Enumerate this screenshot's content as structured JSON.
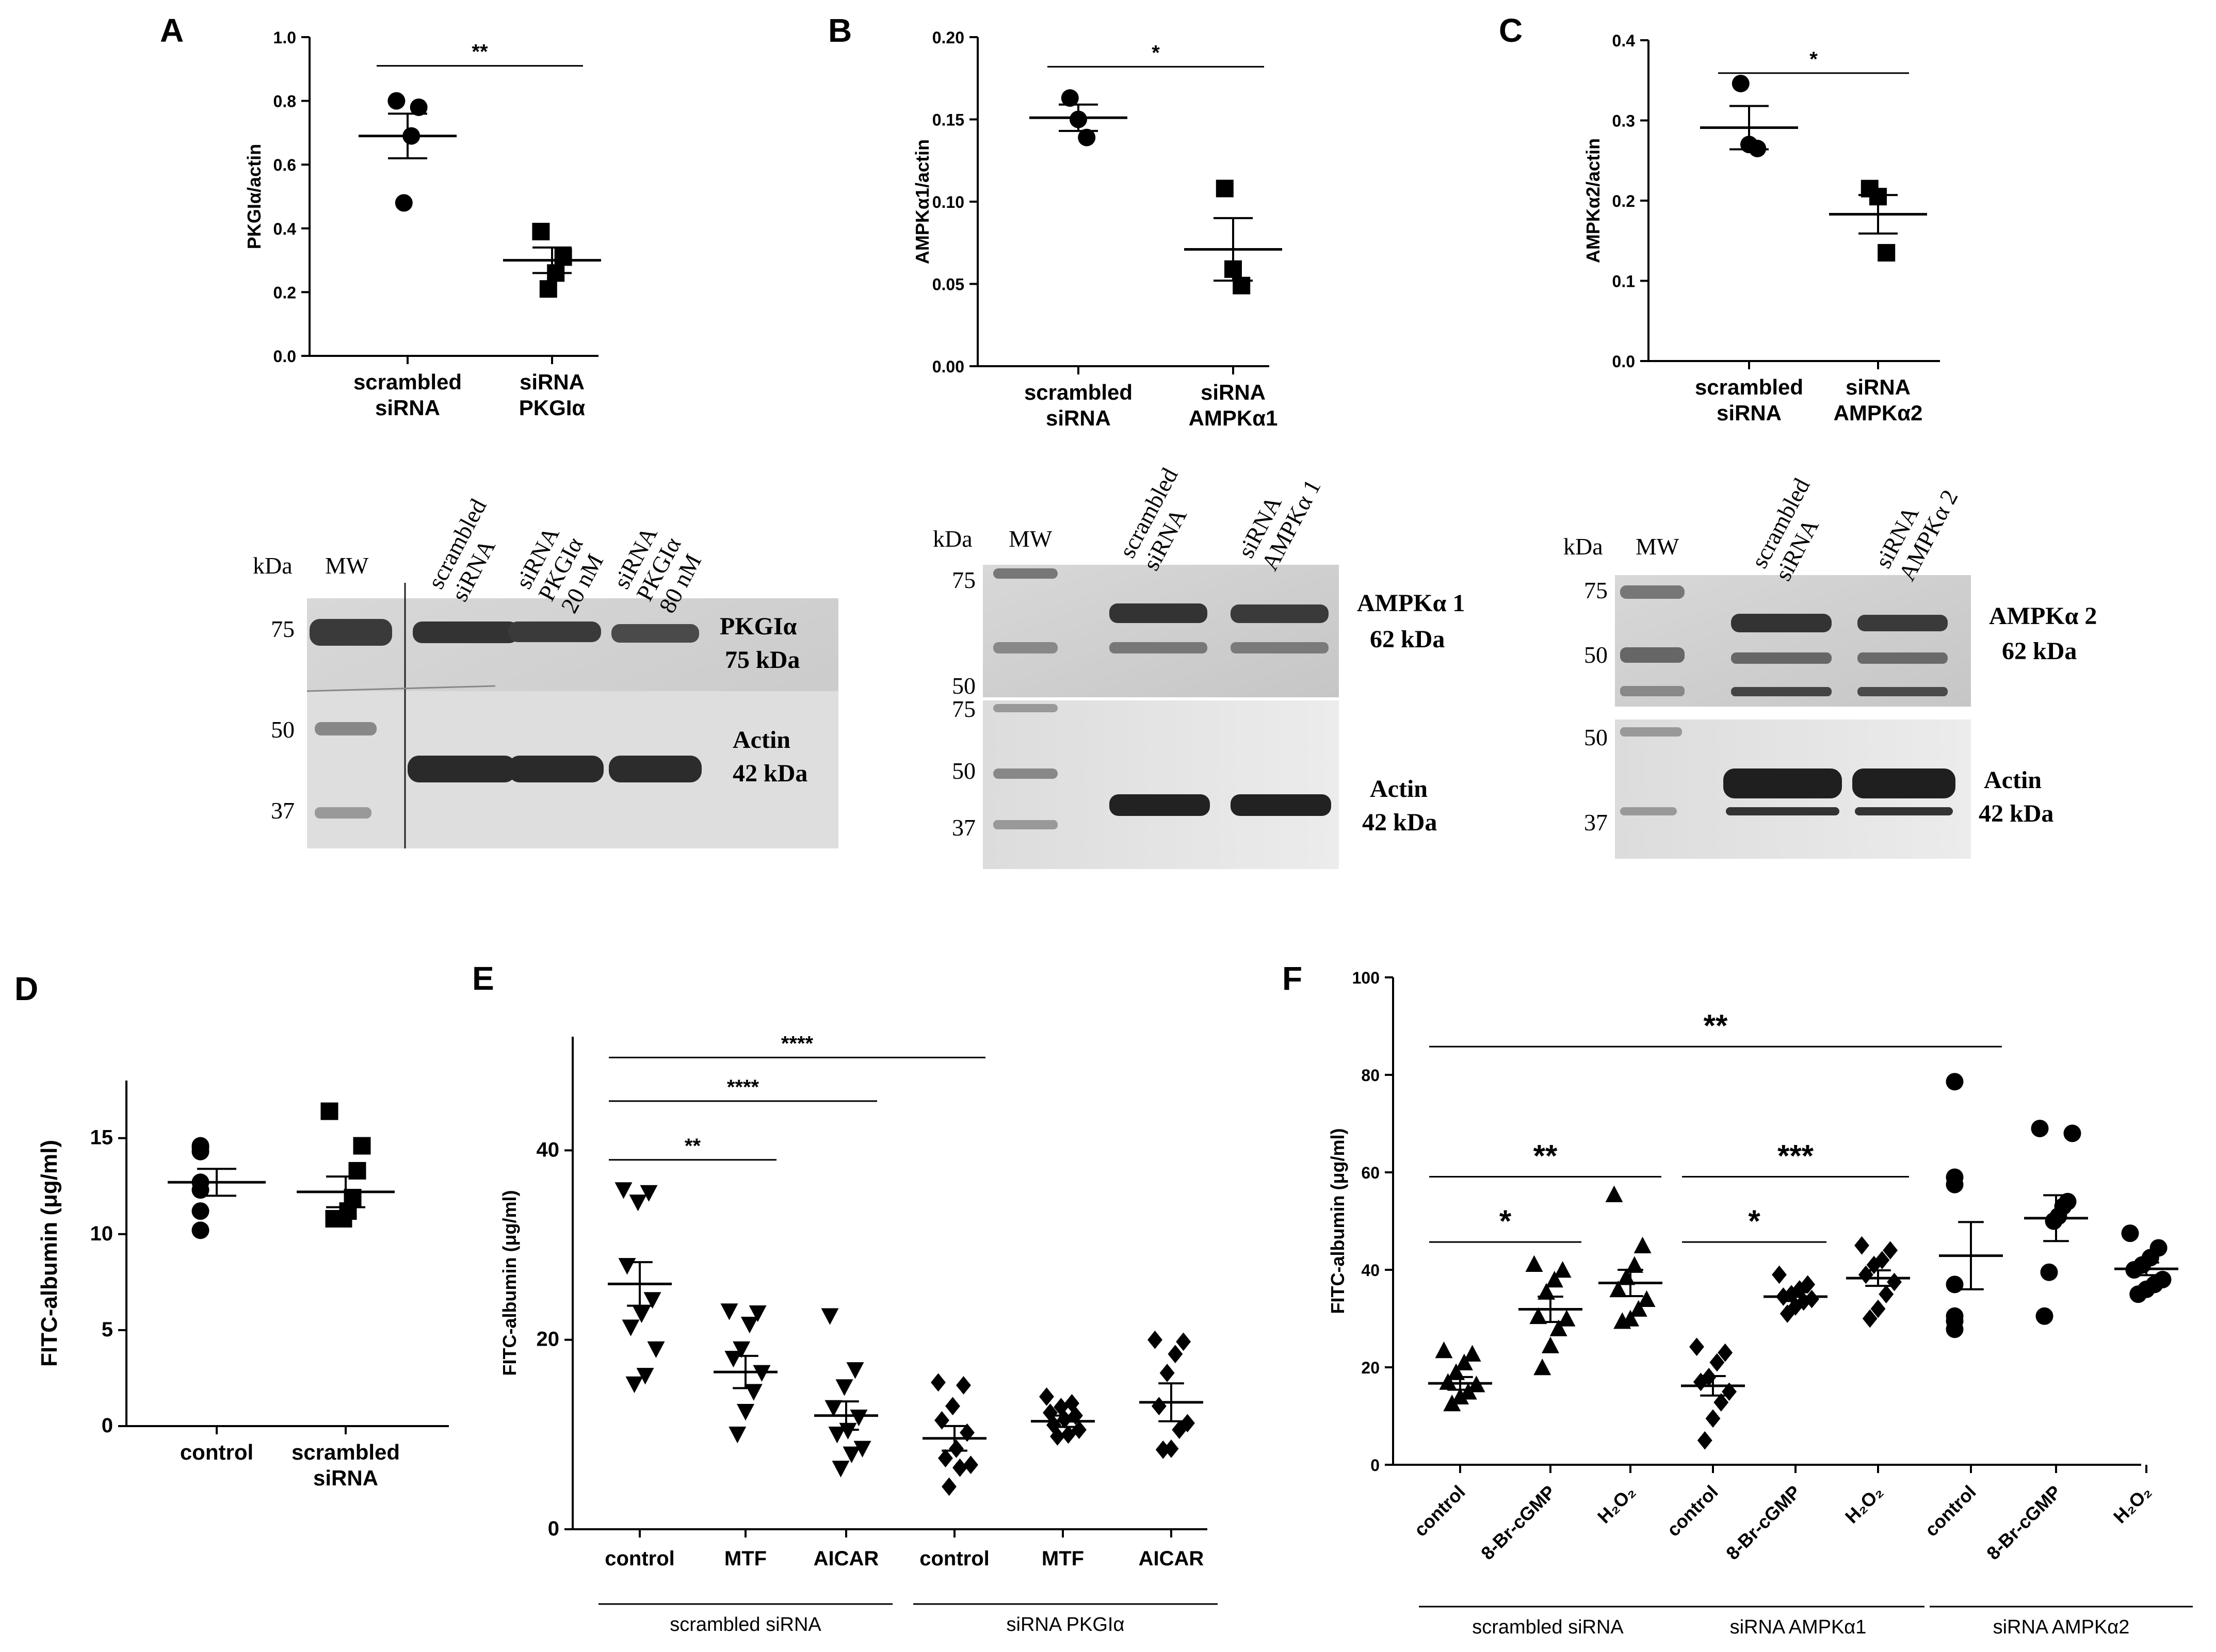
{
  "figure": {
    "panels": {
      "A": {
        "letter": "A"
      },
      "B": {
        "letter": "B"
      },
      "C": {
        "letter": "C"
      },
      "D": {
        "letter": "D"
      },
      "E": {
        "letter": "E"
      },
      "F": {
        "letter": "F"
      }
    }
  },
  "chart_data": [
    {
      "panel": "A",
      "type": "scatter",
      "ylabel": "PKGIα/actin",
      "ylim": [
        0,
        1.0
      ],
      "yticks": [
        0.0,
        0.2,
        0.4,
        0.6,
        0.8,
        1.0
      ],
      "ytick_labels": [
        "0.0",
        "0.2",
        "0.4",
        "0.6",
        "0.8",
        "1.0"
      ],
      "groups": [
        {
          "label": [
            "scrambled",
            "siRNA"
          ],
          "marker": "circle",
          "points": [
            0.8,
            0.78,
            0.69,
            0.48
          ],
          "mean": 0.69,
          "sem": 0.07
        },
        {
          "label": [
            "siRNA",
            "PKGIα"
          ],
          "marker": "square",
          "points": [
            0.39,
            0.31,
            0.26,
            0.21
          ],
          "mean": 0.3,
          "sem": 0.04
        }
      ],
      "comparisons": [
        {
          "from": 0,
          "to": 1,
          "label": "**",
          "y": 0.91
        }
      ]
    },
    {
      "panel": "B",
      "type": "scatter",
      "ylabel": "AMPKα1/actin",
      "ylim": [
        0,
        0.2
      ],
      "yticks": [
        0.0,
        0.05,
        0.1,
        0.15,
        0.2
      ],
      "ytick_labels": [
        "0.00",
        "0.05",
        "0.10",
        "0.15",
        "0.20"
      ],
      "groups": [
        {
          "label": [
            "scrambled",
            "siRNA"
          ],
          "marker": "circle",
          "points": [
            0.163,
            0.15,
            0.139
          ],
          "mean": 0.151,
          "sem": 0.008
        },
        {
          "label": [
            "siRNA",
            "AMPKα1"
          ],
          "marker": "square",
          "points": [
            0.108,
            0.059,
            0.049
          ],
          "mean": 0.071,
          "sem": 0.019
        }
      ],
      "comparisons": [
        {
          "from": 0,
          "to": 1,
          "label": "*",
          "y": 0.182
        }
      ]
    },
    {
      "panel": "C",
      "type": "scatter",
      "ylabel": "AMPKα2/actin",
      "ylim": [
        0,
        0.4
      ],
      "yticks": [
        0.0,
        0.1,
        0.2,
        0.3,
        0.4
      ],
      "ytick_labels": [
        "0.0",
        "0.1",
        "0.2",
        "0.3",
        "0.4"
      ],
      "groups": [
        {
          "label": [
            "scrambled",
            "siRNA"
          ],
          "marker": "circle",
          "points": [
            0.346,
            0.27,
            0.265
          ],
          "mean": 0.291,
          "sem": 0.027
        },
        {
          "label": [
            "siRNA",
            "AMPKα2"
          ],
          "marker": "square",
          "points": [
            0.215,
            0.205,
            0.135
          ],
          "mean": 0.183,
          "sem": 0.024
        }
      ],
      "comparisons": [
        {
          "from": 0,
          "to": 1,
          "label": "*",
          "y": 0.359
        }
      ]
    },
    {
      "panel": "D",
      "type": "scatter",
      "ylabel": "FITC-albumin (μg/ml)",
      "ylim": [
        0,
        18
      ],
      "yticks": [
        0,
        5,
        10,
        15
      ],
      "ytick_labels": [
        "0",
        "5",
        "10",
        "15"
      ],
      "groups": [
        {
          "label": [
            "control"
          ],
          "marker": "circle",
          "points": [
            14.6,
            14.5,
            14.3,
            12.7,
            12.3,
            11.2,
            10.2
          ],
          "mean": 12.7,
          "sem": 0.7
        },
        {
          "label": [
            "scrambled",
            "siRNA"
          ],
          "marker": "square",
          "points": [
            16.4,
            14.6,
            13.3,
            11.9,
            11.2,
            10.8,
            10.8,
            10.8
          ],
          "mean": 12.2,
          "sem": 0.8
        }
      ],
      "comparisons": []
    },
    {
      "panel": "E",
      "type": "scatter",
      "ylabel": "FITC-albumin (μg/ml)",
      "ylim": [
        0,
        52
      ],
      "yticks": [
        0,
        20,
        40
      ],
      "ytick_labels": [
        "0",
        "20",
        "40"
      ],
      "groups": [
        {
          "label": [
            "control"
          ],
          "marker": "triangle-down",
          "points": [
            35.8,
            35.5,
            34.5,
            27.8,
            24.2,
            22.7,
            21.3,
            19,
            16.2,
            15.3
          ],
          "mean": 25.9,
          "sem": 2.3
        },
        {
          "label": [
            "MTF"
          ],
          "marker": "triangle-down",
          "points": [
            23,
            22.8,
            21.6,
            19,
            18,
            16.5,
            14.5,
            12.4,
            10
          ],
          "mean": 16.6,
          "sem": 1.7
        },
        {
          "label": [
            "AICAR"
          ],
          "marker": "triangle-down",
          "points": [
            22.5,
            16.8,
            15,
            12.8,
            11.8,
            10.4,
            10,
            8.5,
            7.9,
            6.4
          ],
          "mean": 12.0,
          "sem": 1.5
        },
        {
          "label": [
            "control"
          ],
          "marker": "diamond",
          "points": [
            15.5,
            15.2,
            13,
            11.5,
            10.2,
            8.5,
            7.5,
            6.8,
            6.5,
            4.5
          ],
          "mean": 9.6,
          "sem": 1.3
        },
        {
          "label": [
            "MTF"
          ],
          "marker": "diamond",
          "points": [
            14,
            13.3,
            12.9,
            12.3,
            12,
            11.6,
            11,
            10.5,
            10,
            9.8
          ],
          "mean": 11.4,
          "sem": 0.6
        },
        {
          "label": [
            "AICAR"
          ],
          "marker": "diamond",
          "points": [
            20,
            19.8,
            18.5,
            16.5,
            13,
            11.2,
            10.5,
            8.5,
            8.4
          ],
          "mean": 13.4,
          "sem": 2.0
        }
      ],
      "comparisons": [
        {
          "from": 0,
          "to": 1,
          "label": "**",
          "y": 39
        },
        {
          "from": 0,
          "to": 2,
          "label": "****",
          "y": 45.2
        },
        {
          "from": 0,
          "to": 3,
          "label": "****",
          "y": 49.8
        }
      ],
      "group_labels": [
        {
          "label": "scrambled siRNA",
          "from": 0,
          "to": 2
        },
        {
          "label": "siRNA PKGIα",
          "from": 3,
          "to": 5
        }
      ]
    },
    {
      "panel": "F",
      "type": "scatter",
      "ylabel": "FITC-albumin (μg/ml)",
      "ylim": [
        0,
        100
      ],
      "yticks": [
        0,
        20,
        40,
        60,
        80,
        100
      ],
      "ytick_labels": [
        "0",
        "20",
        "40",
        "60",
        "80",
        "100"
      ],
      "groups": [
        {
          "label": [
            "control"
          ],
          "marker": "triangle-up",
          "points": [
            23.5,
            22.8,
            21,
            19,
            17,
            16.5,
            15,
            14,
            12.6
          ],
          "mean": 16.7,
          "sem": 1.3
        },
        {
          "label": [
            "8-Br-cGMP"
          ],
          "marker": "triangle-up",
          "points": [
            41.2,
            40,
            38,
            35.5,
            30.5,
            30,
            28,
            24.5,
            20
          ],
          "mean": 31.9,
          "sem": 2.6
        },
        {
          "label": [
            "H₂O₂"
          ],
          "marker": "triangle-up",
          "points": [
            55.5,
            45,
            41,
            38.5,
            36,
            34,
            32,
            30,
            29.5
          ],
          "mean": 37.3,
          "sem": 2.7
        },
        {
          "label": [
            "control"
          ],
          "marker": "diamond",
          "points": [
            24.2,
            23,
            21,
            18,
            17,
            15,
            12.8,
            9.5,
            5
          ],
          "mean": 16.2,
          "sem": 2.0
        },
        {
          "label": [
            "8-Br-cGMP"
          ],
          "marker": "diamond",
          "points": [
            39,
            37,
            36,
            35,
            34.5,
            34,
            33.5,
            32.5,
            31
          ],
          "mean": 34.5,
          "sem": 0.9
        },
        {
          "label": [
            "H₂O₂"
          ],
          "marker": "diamond",
          "points": [
            45,
            44,
            42,
            41,
            39,
            37.5,
            35,
            32,
            30
          ],
          "mean": 38.3,
          "sem": 1.6
        },
        {
          "label": [
            "control"
          ],
          "marker": "circle",
          "points": [
            78.6,
            59,
            57.5,
            37,
            30.5,
            29.5,
            27.8
          ],
          "mean": 42.9,
          "sem": 6.9
        },
        {
          "label": [
            "8-Br-cGMP"
          ],
          "marker": "circle",
          "points": [
            69,
            68,
            54,
            53,
            51,
            50,
            39.5,
            30.5
          ],
          "mean": 50.6,
          "sem": 4.7
        },
        {
          "label": [
            "H₂O₂"
          ],
          "marker": "circle",
          "points": [
            47.5,
            44.5,
            42.5,
            41,
            40,
            38,
            37,
            36,
            35
          ],
          "mean": 40.2,
          "sem": 1.3
        }
      ],
      "comparisons": [
        {
          "from": 0,
          "to": 1,
          "label": "*",
          "y": 45.7
        },
        {
          "from": 0,
          "to": 2,
          "label": "**",
          "y": 59.1
        },
        {
          "from": 3,
          "to": 4,
          "label": "*",
          "y": 45.7
        },
        {
          "from": 3,
          "to": 5,
          "label": "***",
          "y": 59.1
        },
        {
          "from": 0,
          "to": 6,
          "label": "**",
          "y": 85.8
        }
      ],
      "group_labels": [
        {
          "label": "scrambled siRNA",
          "from": 0,
          "to": 2
        },
        {
          "label": "siRNA AMPKα1",
          "from": 3,
          "to": 5
        },
        {
          "label": "siRNA AMPKα2",
          "from": 6,
          "to": 8
        }
      ]
    }
  ],
  "blots": {
    "A": {
      "kda_label": "kDa",
      "mw_label": "MW",
      "lanes": [
        [
          "scrambled",
          "siRNA"
        ],
        [
          "siRNA",
          "PKGIα",
          "20 nM"
        ],
        [
          "siRNA",
          "PKGIα",
          "80 nM"
        ]
      ],
      "markers": [
        "75",
        "50",
        "37"
      ],
      "bands": [
        [
          "PKGIα",
          "75 kDa"
        ],
        [
          "Actin",
          "42 kDa"
        ]
      ]
    },
    "B": {
      "kda_label": "kDa",
      "mw_label": "MW",
      "lanes": [
        [
          "scrambled",
          "siRNA"
        ],
        [
          "siRNA",
          "AMPKα 1"
        ]
      ],
      "markers_top": [
        "75",
        "50"
      ],
      "markers_bottom": [
        "75",
        "50",
        "37"
      ],
      "bands": [
        [
          "AMPKα 1",
          "62 kDa"
        ],
        [
          "Actin",
          "42 kDa"
        ]
      ]
    },
    "C": {
      "kda_label": "kDa",
      "mw_label": "MW",
      "lanes": [
        [
          "scrambled",
          "siRNA"
        ],
        [
          "siRNA",
          "AMPKα 2"
        ]
      ],
      "markers_top": [
        "75",
        "50"
      ],
      "markers_bottom": [
        "50",
        "37"
      ],
      "bands": [
        [
          "AMPKα 2",
          "62 kDa"
        ],
        [
          "Actin",
          "42 kDa"
        ]
      ]
    }
  }
}
